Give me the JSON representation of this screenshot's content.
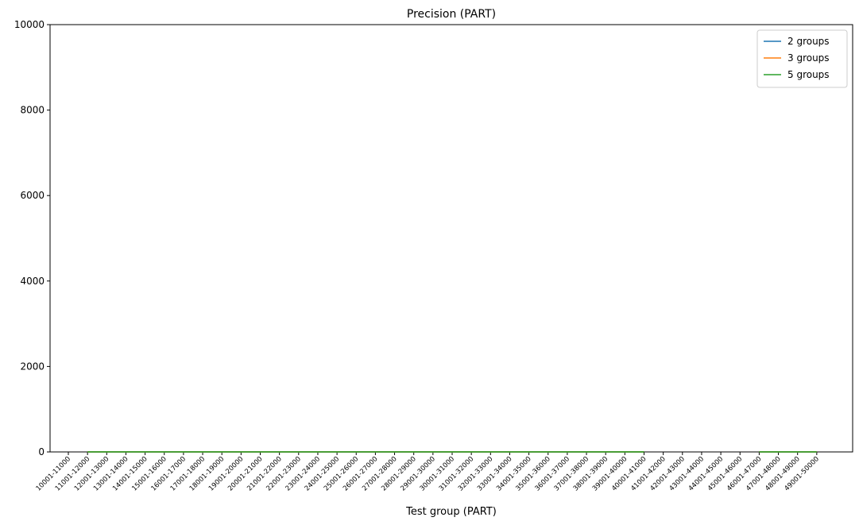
{
  "chart_data": {
    "type": "line",
    "title": "Precision (PART)",
    "xlabel": "Test group (PART)",
    "ylabel": "",
    "ylim": [
      0,
      10000
    ],
    "yticks": [
      0,
      2000,
      4000,
      6000,
      8000,
      10000
    ],
    "grid": false,
    "legend_position": "top-right",
    "categories": [
      "10001-11000",
      "11001-12000",
      "12001-13000",
      "13001-14000",
      "14001-15000",
      "15001-16000",
      "16001-17000",
      "17001-18000",
      "18001-19000",
      "19001-20000",
      "20001-21000",
      "21001-22000",
      "22001-23000",
      "23001-24000",
      "24001-25000",
      "25001-26000",
      "26001-27000",
      "27001-28000",
      "28001-29000",
      "29001-30000",
      "30001-31000",
      "31001-32000",
      "32001-33000",
      "33001-34000",
      "34001-35000",
      "35001-36000",
      "36001-37000",
      "37001-38000",
      "38001-39000",
      "39001-40000",
      "40001-41000",
      "41001-42000",
      "42001-43000",
      "43001-44000",
      "44001-45000",
      "45001-46000",
      "46001-47000",
      "47001-48000",
      "48001-49000",
      "49001-50000"
    ],
    "series": [
      {
        "name": "2 groups",
        "color": "#1f77b4",
        "values": [
          null,
          1,
          1,
          1,
          1,
          1,
          1,
          1,
          1,
          1,
          1,
          1,
          1,
          1,
          1,
          1,
          1,
          1,
          1,
          1,
          1,
          1,
          1,
          1,
          1,
          1,
          1,
          1,
          1,
          1,
          1,
          null,
          null,
          null,
          null,
          null,
          1,
          1,
          1,
          1
        ]
      },
      {
        "name": "3 groups",
        "color": "#ff7f0e",
        "values": [
          null,
          1,
          1,
          1,
          1,
          1,
          1,
          1,
          1,
          1,
          1,
          1,
          1,
          1,
          1,
          1,
          1,
          1,
          1,
          1,
          1,
          1,
          1,
          1,
          1,
          1,
          1,
          1,
          1,
          1,
          1,
          null,
          null,
          null,
          null,
          null,
          1,
          1,
          1,
          1
        ]
      },
      {
        "name": "5 groups",
        "color": "#2ca02c",
        "values": [
          null,
          1,
          1,
          1,
          1,
          1,
          1,
          1,
          1,
          1,
          1,
          1,
          1,
          1,
          1,
          1,
          1,
          1,
          1,
          1,
          1,
          1,
          1,
          1,
          1,
          1,
          1,
          1,
          1,
          1,
          1,
          null,
          null,
          null,
          null,
          null,
          1,
          1,
          1,
          1
        ]
      }
    ]
  }
}
